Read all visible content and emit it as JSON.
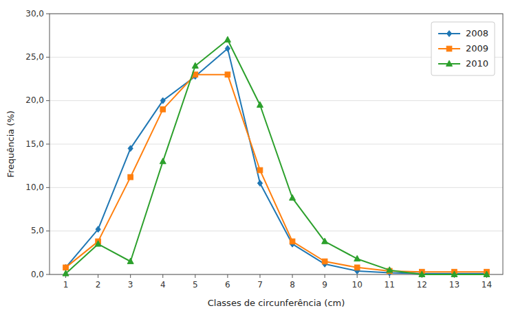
{
  "chart_data": {
    "type": "line",
    "xlabel": "Classes de circunferência (cm)",
    "ylabel": "Frequência (%)",
    "x": [
      1,
      2,
      3,
      4,
      5,
      6,
      7,
      8,
      9,
      10,
      11,
      12,
      13,
      14
    ],
    "series": [
      {
        "name": "2008",
        "color": "#1f77b4",
        "marker": "diamond",
        "values": [
          0.8,
          5.2,
          14.5,
          20.0,
          22.8,
          26.0,
          10.5,
          3.5,
          1.2,
          0.4,
          0.2,
          0.1,
          0.1,
          0.1
        ]
      },
      {
        "name": "2009",
        "color": "#ff7f0e",
        "marker": "square",
        "values": [
          0.8,
          3.8,
          11.2,
          19.0,
          23.0,
          23.0,
          12.0,
          3.8,
          1.5,
          0.8,
          0.4,
          0.3,
          0.3,
          0.3
        ]
      },
      {
        "name": "2010",
        "color": "#2ca02c",
        "marker": "triangle",
        "values": [
          0.1,
          3.5,
          1.5,
          13.0,
          24.0,
          27.0,
          19.5,
          8.8,
          3.8,
          1.8,
          0.5,
          0.0,
          0.0,
          0.0
        ]
      }
    ],
    "xlim": [
      0.5,
      14.5
    ],
    "xticks": [
      1,
      2,
      3,
      4,
      5,
      6,
      7,
      8,
      9,
      10,
      11,
      12,
      13,
      14
    ],
    "ylim": [
      0.0,
      30.0
    ],
    "yticks": [
      {
        "value": 0.0,
        "label": "0,0"
      },
      {
        "value": 5.0,
        "label": "5,0"
      },
      {
        "value": 10.0,
        "label": "10,0"
      },
      {
        "value": 15.0,
        "label": "15,0"
      },
      {
        "value": 20.0,
        "label": "20,0"
      },
      {
        "value": 25.0,
        "label": "25,0"
      },
      {
        "value": 30.0,
        "label": "30,0"
      }
    ],
    "grid": "y",
    "legend": "upper right"
  }
}
